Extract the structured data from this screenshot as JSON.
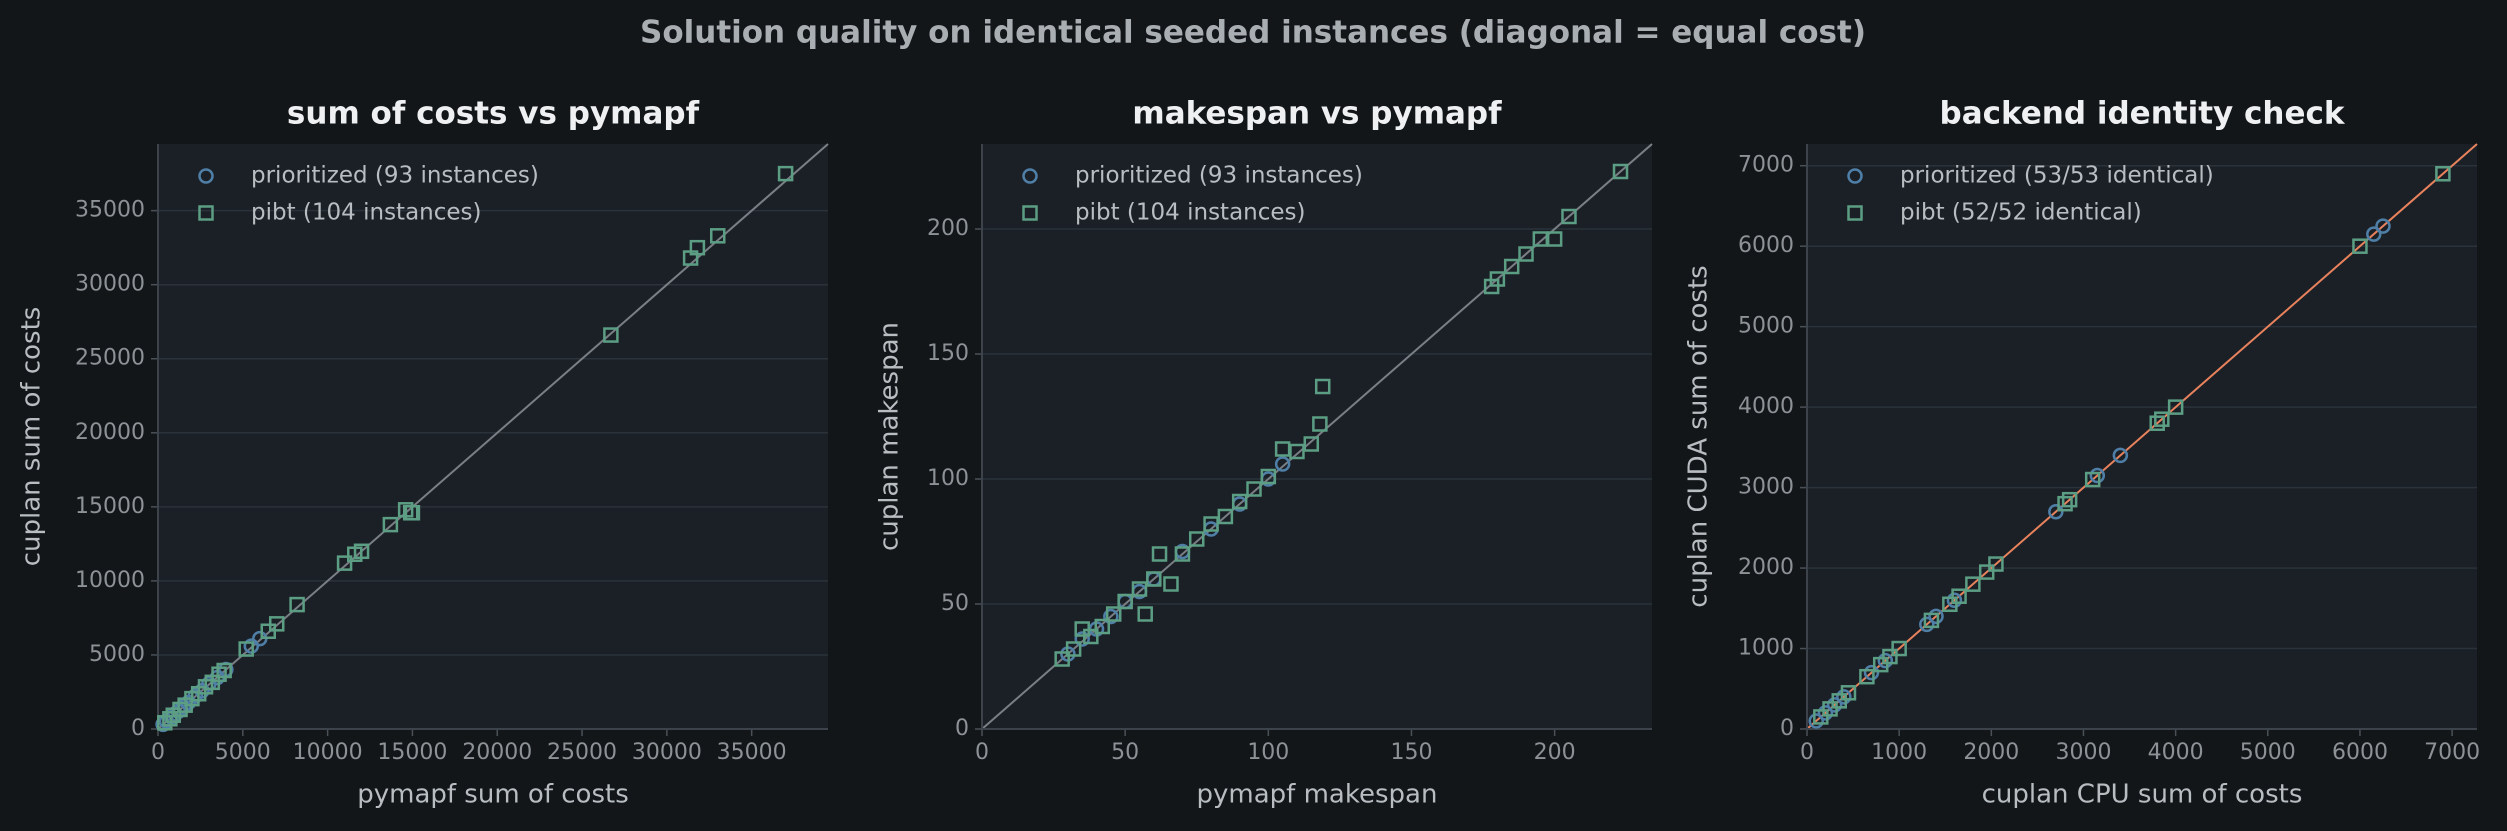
{
  "title": "Solution quality on identical seeded instances (diagonal = equal cost)",
  "chart_data": [
    {
      "type": "scatter",
      "title": "sum of costs vs pymapf",
      "x_label": "pymapf sum of costs",
      "y_label": "cuplan sum of costs",
      "xlim": [
        0,
        39500
      ],
      "ylim": [
        0,
        39500
      ],
      "xticks": [
        0,
        5000,
        10000,
        15000,
        20000,
        25000,
        30000,
        35000
      ],
      "yticks": [
        0,
        5000,
        10000,
        15000,
        20000,
        25000,
        30000,
        35000
      ],
      "grid": true,
      "legend": "upper left",
      "diagonal_color": "#7a7f85",
      "series": [
        {
          "name": "prioritized (93 instances)",
          "color": "#4f7fa6",
          "marker": "circle",
          "x": [
            300,
            500,
            800,
            1000,
            1200,
            1500,
            1800,
            2200,
            2600,
            3000,
            3500,
            4000,
            5500,
            6000
          ],
          "values": [
            310,
            520,
            790,
            1020,
            1190,
            1530,
            1790,
            2230,
            2580,
            3050,
            3480,
            4020,
            5600,
            6100
          ]
        },
        {
          "name": "pibt (104 instances)",
          "color": "#5c9e84",
          "marker": "square",
          "x": [
            400,
            700,
            900,
            1300,
            1600,
            2000,
            2400,
            2800,
            3200,
            3600,
            3900,
            5200,
            6500,
            7000,
            8200,
            11000,
            11600,
            12000,
            13700,
            14600,
            15000,
            14900,
            26700,
            31400,
            31800,
            33000,
            37000
          ],
          "values": [
            420,
            690,
            930,
            1320,
            1610,
            2050,
            2380,
            2850,
            3150,
            3700,
            3950,
            5400,
            6600,
            7100,
            8400,
            11200,
            11800,
            12000,
            13800,
            14800,
            14600,
            14600,
            26600,
            31800,
            32500,
            33300,
            37500
          ]
        }
      ]
    },
    {
      "type": "scatter",
      "title": "makespan vs pymapf",
      "x_label": "pymapf makespan",
      "y_label": "cuplan makespan",
      "xlim": [
        0,
        234
      ],
      "ylim": [
        0,
        234
      ],
      "xticks": [
        0,
        50,
        100,
        150,
        200
      ],
      "yticks": [
        0,
        50,
        100,
        150,
        200
      ],
      "grid": true,
      "legend": "upper left",
      "diagonal_color": "#7a7f85",
      "series": [
        {
          "name": "prioritized (93 instances)",
          "color": "#4f7fa6",
          "marker": "circle",
          "x": [
            30,
            35,
            40,
            45,
            50,
            55,
            60,
            70,
            80,
            90,
            100,
            105
          ],
          "values": [
            30,
            36,
            40,
            45,
            51,
            55,
            60,
            71,
            80,
            90,
            100,
            106
          ]
        },
        {
          "name": "pibt (104 instances)",
          "color": "#5c9e84",
          "marker": "square",
          "x": [
            28,
            32,
            35,
            38,
            42,
            46,
            50,
            55,
            57,
            60,
            62,
            66,
            70,
            75,
            80,
            85,
            90,
            95,
            100,
            105,
            110,
            115,
            118,
            119,
            178,
            180,
            185,
            190,
            195,
            200,
            205,
            223
          ],
          "values": [
            28,
            32,
            40,
            37,
            41,
            46,
            51,
            56,
            46,
            60,
            70,
            58,
            70,
            76,
            82,
            85,
            91,
            96,
            101,
            112,
            111,
            114,
            122,
            137,
            177,
            180,
            185,
            190,
            196,
            196,
            205,
            223
          ]
        }
      ]
    },
    {
      "type": "scatter",
      "title": "backend identity check",
      "x_label": "cuplan CPU sum of costs",
      "y_label": "cuplan CUDA sum of costs",
      "xlim": [
        0,
        7270
      ],
      "ylim": [
        0,
        7270
      ],
      "xticks": [
        0,
        1000,
        2000,
        3000,
        4000,
        5000,
        6000,
        7000
      ],
      "yticks": [
        0,
        1000,
        2000,
        3000,
        4000,
        5000,
        6000,
        7000
      ],
      "grid": true,
      "legend": "upper left",
      "diagonal_color": "#e8825c",
      "series": [
        {
          "name": "prioritized (53/53 identical)",
          "color": "#4f7fa6",
          "marker": "circle",
          "x": [
            100,
            200,
            300,
            400,
            700,
            850,
            1300,
            1400,
            1600,
            2700,
            3150,
            3400,
            6150,
            6250
          ],
          "values": [
            100,
            200,
            300,
            400,
            700,
            850,
            1300,
            1400,
            1600,
            2700,
            3150,
            3400,
            6150,
            6250
          ]
        },
        {
          "name": "pibt (52/52 identical)",
          "color": "#5c9e84",
          "marker": "square",
          "x": [
            150,
            250,
            350,
            450,
            650,
            800,
            900,
            1000,
            1350,
            1550,
            1650,
            1800,
            1950,
            2050,
            2800,
            2850,
            3100,
            3800,
            3850,
            4000,
            6000,
            6900
          ],
          "values": [
            150,
            250,
            350,
            450,
            650,
            800,
            900,
            1000,
            1350,
            1550,
            1650,
            1800,
            1950,
            2050,
            2800,
            2850,
            3100,
            3800,
            3850,
            4000,
            6000,
            6900
          ]
        }
      ]
    }
  ]
}
